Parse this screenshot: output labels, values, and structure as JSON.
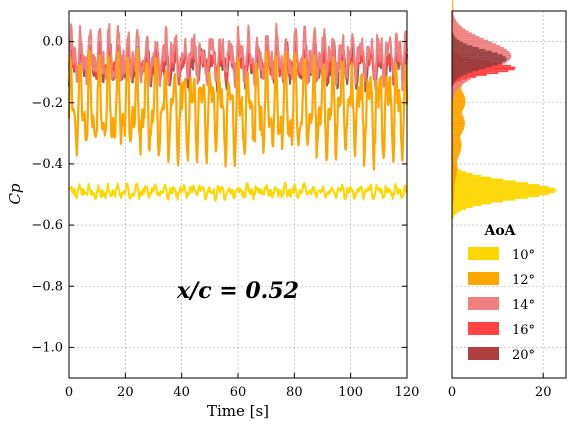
{
  "chart_data": [
    {
      "type": "line",
      "xlabel": "Time [s]",
      "ylabel": "Cp",
      "xlim": [
        0,
        120
      ],
      "ylim": [
        -1.1,
        0.1
      ],
      "xticks": [
        0,
        20,
        40,
        60,
        80,
        100,
        120
      ],
      "xtick_labels": [
        "0",
        "20",
        "40",
        "60",
        "80",
        "100",
        "120"
      ],
      "yticks": [
        0.0,
        -0.2,
        -0.4,
        -0.6,
        -0.8,
        -1.0
      ],
      "ytick_labels": [
        "0.0",
        "−0.2",
        "−0.4",
        "−0.6",
        "−0.8",
        "−1.0"
      ],
      "grid": true,
      "annotation": "x/c = 0.52",
      "series": [
        {
          "name": "20°",
          "color": "#8B3A3A",
          "mean": -0.08,
          "amp": 0.06,
          "noise": 0.03
        },
        {
          "name": "16°",
          "color": "#FF4444",
          "mean": -0.07,
          "amp": 0.05,
          "noise": 0.025
        },
        {
          "name": "14°",
          "color": "#F08080",
          "mean": -0.05,
          "amp": 0.08,
          "noise": 0.04
        },
        {
          "name": "12°",
          "color": "#FFA500",
          "mean": -0.22,
          "amp": 0.17,
          "noise": 0.04
        },
        {
          "name": "10°",
          "color": "#FFD700",
          "mean": -0.49,
          "amp": 0.02,
          "noise": 0.012
        }
      ]
    },
    {
      "type": "bar",
      "orientation": "horizontal",
      "description_of_axes": "histogram of Cp values",
      "xlim": [
        0,
        25
      ],
      "xticks": [
        0,
        20
      ],
      "xtick_labels": [
        "0",
        "20"
      ],
      "ylim": [
        -1.1,
        0.1
      ],
      "grid": true,
      "series": [
        {
          "name": "10°",
          "color": "#FFD700",
          "center": -0.49,
          "spread": 0.03,
          "peak": 23
        },
        {
          "name": "12°",
          "color": "#FFA500",
          "center": -0.22,
          "spread": 0.15,
          "peak": 3
        },
        {
          "name": "14°",
          "color": "#F08080",
          "center": -0.05,
          "spread": 0.05,
          "peak": 13
        },
        {
          "name": "16°",
          "color": "#FF4444",
          "center": -0.09,
          "spread": 0.02,
          "peak": 14
        },
        {
          "name": "20°",
          "color": "#8B3A3A",
          "center": -0.06,
          "spread": 0.03,
          "peak": 12
        }
      ]
    }
  ],
  "legend": {
    "title": "AoA",
    "entries": [
      {
        "label": "10°",
        "color": "#FFD700"
      },
      {
        "label": "12°",
        "color": "#FFA500"
      },
      {
        "label": "14°",
        "color": "#F08080"
      },
      {
        "label": "16°",
        "color": "#FF4444"
      },
      {
        "label": "20°",
        "color": "#B04040"
      }
    ]
  }
}
